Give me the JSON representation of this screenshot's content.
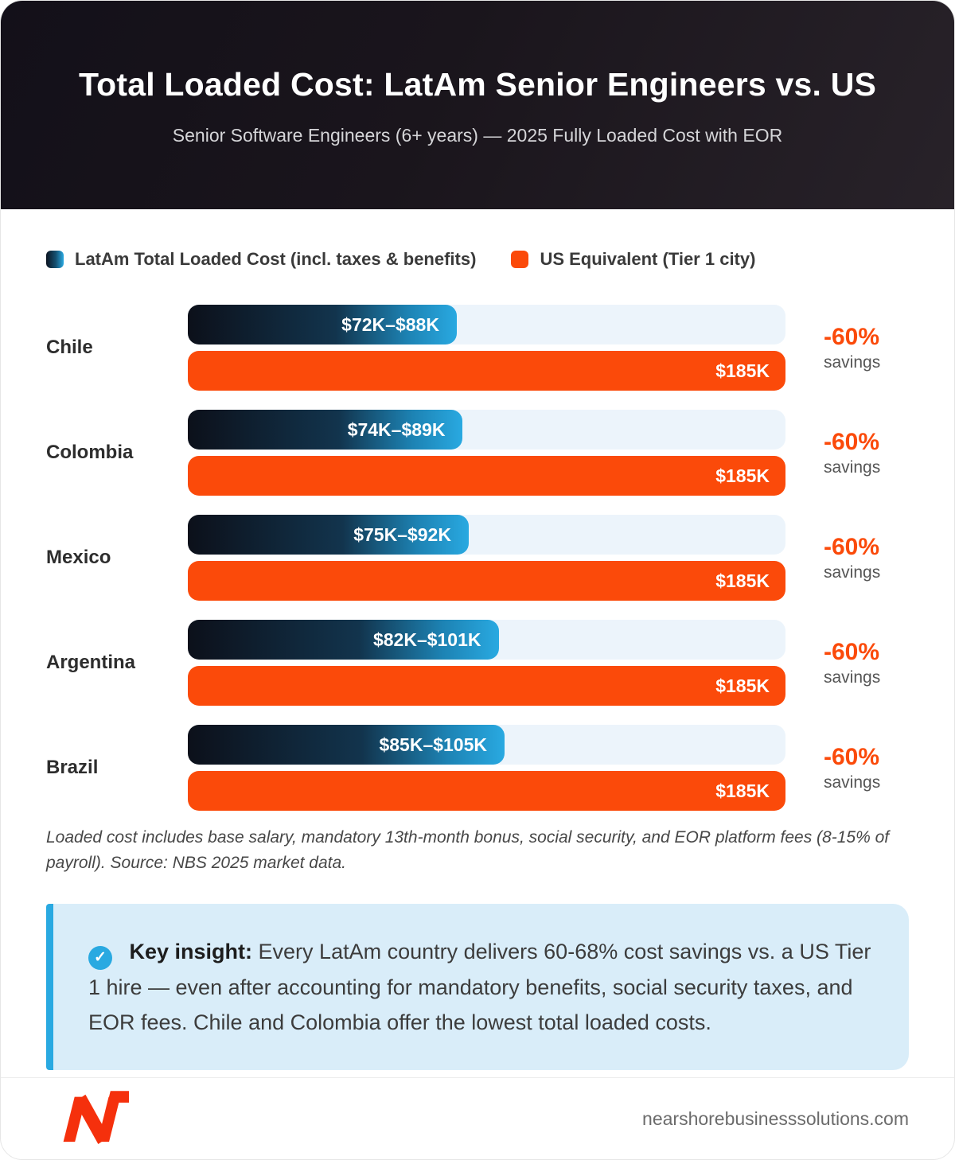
{
  "header": {
    "title": "Total Loaded Cost: LatAm Senior Engineers vs. US",
    "subtitle": "Senior Software Engineers (6+ years) — 2025 Fully Loaded Cost with EOR"
  },
  "legend": {
    "latam_label": "LatAm Total Loaded Cost (incl. taxes & benefits)",
    "us_label": "US Equivalent (Tier 1 city)"
  },
  "chart_data": {
    "type": "bar",
    "title": "Total Loaded Cost: LatAm Senior Engineers vs. US",
    "subtitle": "Senior Software Engineers (6+ years) — 2025 Fully Loaded Cost with EOR",
    "orientation": "horizontal",
    "unit": "USD thousands per year",
    "legend": [
      "LatAm Total Loaded Cost (incl. taxes & benefits)",
      "US Equivalent (Tier 1 city)"
    ],
    "categories": [
      "Chile",
      "Colombia",
      "Mexico",
      "Argentina",
      "Brazil"
    ],
    "series": [
      {
        "name": "LatAm Total Loaded Cost",
        "values_min": [
          72,
          74,
          75,
          82,
          85
        ],
        "values_max": [
          88,
          89,
          92,
          101,
          105
        ]
      },
      {
        "name": "US Equivalent (Tier 1 city)",
        "values": [
          185,
          185,
          185,
          185,
          185
        ]
      }
    ],
    "rows": [
      {
        "country": "Chile",
        "latam_label": "$72K–$88K",
        "latam_min": 72,
        "latam_max": 88,
        "us_label": "$185K",
        "us_value": 185,
        "savings_label": "-60%",
        "savings_sub": "savings",
        "fill_pct": 45
      },
      {
        "country": "Colombia",
        "latam_label": "$74K–$89K",
        "latam_min": 74,
        "latam_max": 89,
        "us_label": "$185K",
        "us_value": 185,
        "savings_label": "-60%",
        "savings_sub": "savings",
        "fill_pct": 46
      },
      {
        "country": "Mexico",
        "latam_label": "$75K–$92K",
        "latam_min": 75,
        "latam_max": 92,
        "us_label": "$185K",
        "us_value": 185,
        "savings_label": "-60%",
        "savings_sub": "savings",
        "fill_pct": 47
      },
      {
        "country": "Argentina",
        "latam_label": "$82K–$101K",
        "latam_min": 82,
        "latam_max": 101,
        "us_label": "$185K",
        "us_value": 185,
        "savings_label": "-60%",
        "savings_sub": "savings",
        "fill_pct": 52
      },
      {
        "country": "Brazil",
        "latam_label": "$85K–$105K",
        "latam_min": 85,
        "latam_max": 105,
        "us_label": "$185K",
        "us_value": 185,
        "savings_label": "-60%",
        "savings_sub": "savings",
        "fill_pct": 53
      }
    ],
    "colors": {
      "latam_gradient_start": "#0c101a",
      "latam_gradient_end": "#29a9e1",
      "us_orange": "#fb4a0a",
      "track_light_blue": "#ecf4fb",
      "savings_orange": "#fb4a0a"
    }
  },
  "footnote": "Loaded cost includes base salary, mandatory 13th-month bonus, social security, and EOR platform fees (8-15% of payroll). Source: NBS 2025 market data.",
  "insight": {
    "icon": "check-circle",
    "check_glyph": "✓",
    "label": "Key insight:",
    "text": " Every LatAm country delivers 60-68% cost savings vs. a US Tier 1 hire — even after accounting for mandatory benefits, social security taxes, and EOR fees. Chile and Colombia offer the lowest total loaded costs."
  },
  "footer": {
    "website": "nearshorebusinesssolutions.com",
    "logo": "nearshore-business-solutions-n-logo",
    "logo_color": "#f5300c"
  }
}
